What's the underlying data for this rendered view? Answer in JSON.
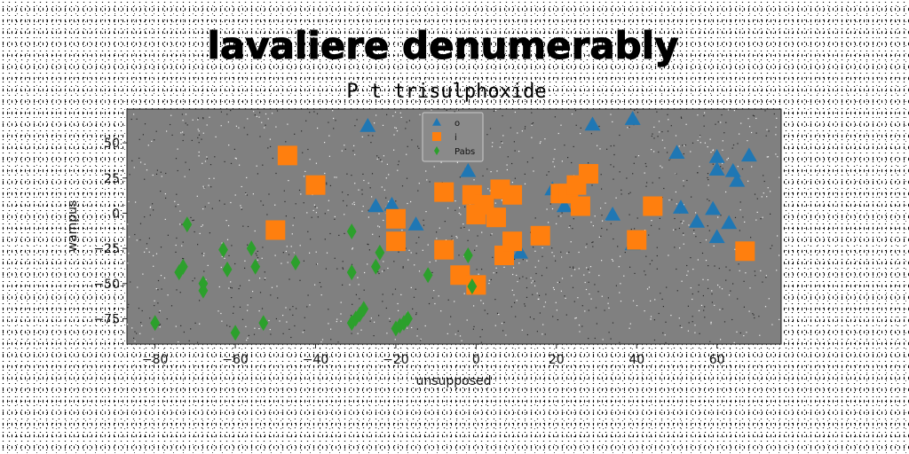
{
  "chart_data": {
    "type": "scatter",
    "title": "lavaliere denumerably",
    "subtitle": "P t trisulphoxide",
    "xlabel": "unsupposed",
    "ylabel": "wampus",
    "xlim": [
      -87,
      76
    ],
    "ylim": [
      -93,
      74
    ],
    "xticks": [
      -80,
      -60,
      -40,
      -20,
      0,
      20,
      40,
      60
    ],
    "yticks": [
      -75,
      -50,
      -25,
      0,
      25,
      50
    ],
    "grid": false,
    "legend_position": "top-center",
    "background": "#808080",
    "series": [
      {
        "name": "o",
        "marker": "triangle",
        "color": "#1f77b4",
        "points": [
          [
            -27,
            62
          ],
          [
            -25,
            5
          ],
          [
            -21,
            6
          ],
          [
            -15,
            -8
          ],
          [
            -2,
            30
          ],
          [
            11,
            -28
          ],
          [
            19,
            17
          ],
          [
            22,
            5
          ],
          [
            29,
            63
          ],
          [
            34,
            -1
          ],
          [
            39,
            67
          ],
          [
            39,
            -22
          ],
          [
            50,
            43
          ],
          [
            51,
            4
          ],
          [
            55,
            -6
          ],
          [
            59,
            3
          ],
          [
            60,
            40
          ],
          [
            60,
            31
          ],
          [
            60,
            -17
          ],
          [
            63,
            -7
          ],
          [
            64,
            30
          ],
          [
            65,
            23
          ],
          [
            68,
            41
          ]
        ]
      },
      {
        "name": "i",
        "marker": "square",
        "color": "#ff7f0e",
        "points": [
          [
            -47,
            41
          ],
          [
            -40,
            20
          ],
          [
            -50,
            -12
          ],
          [
            -20,
            -4
          ],
          [
            -20,
            -20
          ],
          [
            -8,
            15
          ],
          [
            -8,
            -26
          ],
          [
            -4,
            -44
          ],
          [
            -1,
            13
          ],
          [
            0,
            -51
          ],
          [
            0,
            -1
          ],
          [
            2,
            6
          ],
          [
            5,
            -3
          ],
          [
            6,
            17
          ],
          [
            7,
            -30
          ],
          [
            9,
            13
          ],
          [
            9,
            -20
          ],
          [
            16,
            -16
          ],
          [
            21,
            14
          ],
          [
            23,
            14
          ],
          [
            25,
            20
          ],
          [
            26,
            5
          ],
          [
            28,
            28
          ],
          [
            40,
            -19
          ],
          [
            44,
            5
          ],
          [
            67,
            -27
          ]
        ]
      },
      {
        "name": "Pabs",
        "marker": "diamond",
        "color": "#2ca02c",
        "points": [
          [
            -80,
            -78
          ],
          [
            -74,
            -42
          ],
          [
            -73,
            -38
          ],
          [
            -72,
            -8
          ],
          [
            -68,
            -55
          ],
          [
            -68,
            -50
          ],
          [
            -63,
            -26
          ],
          [
            -62,
            -40
          ],
          [
            -60,
            -85
          ],
          [
            -56,
            -25
          ],
          [
            -55,
            -38
          ],
          [
            -53,
            -78
          ],
          [
            -45,
            -35
          ],
          [
            -31,
            -13
          ],
          [
            -31,
            -42
          ],
          [
            -31,
            -78
          ],
          [
            -30,
            -75
          ],
          [
            -29,
            -72
          ],
          [
            -28,
            -68
          ],
          [
            -25,
            -38
          ],
          [
            -24,
            -28
          ],
          [
            -20,
            -82
          ],
          [
            -19,
            -80
          ],
          [
            -18,
            -78
          ],
          [
            -17,
            -75
          ],
          [
            -12,
            -44
          ],
          [
            -2,
            -30
          ],
          [
            -1,
            -52
          ]
        ]
      }
    ]
  }
}
